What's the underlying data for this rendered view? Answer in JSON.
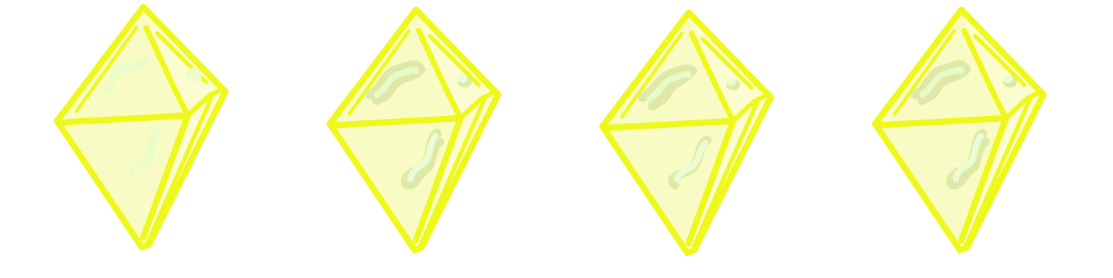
{
  "sprite_sheet": {
    "frame_count": 4,
    "frames": [
      {
        "label": "",
        "highlight_style": "soft"
      },
      {
        "label": "",
        "highlight_style": "shaded"
      },
      {
        "label": "",
        "highlight_style": "shaded"
      },
      {
        "label": "",
        "highlight_style": "shaded"
      }
    ]
  },
  "colors": {
    "background": "#ffffff",
    "outline": "#eef81c",
    "face_light": "#f8fcc4",
    "face_lighter": "#fbfdd0",
    "highlight_green": "#e3f7c4",
    "highlight_mint": "#eafcd4",
    "shadow_olive": "#dfe8a6"
  },
  "icons": {
    "frame": "yellow-crystal-gem-icon"
  }
}
